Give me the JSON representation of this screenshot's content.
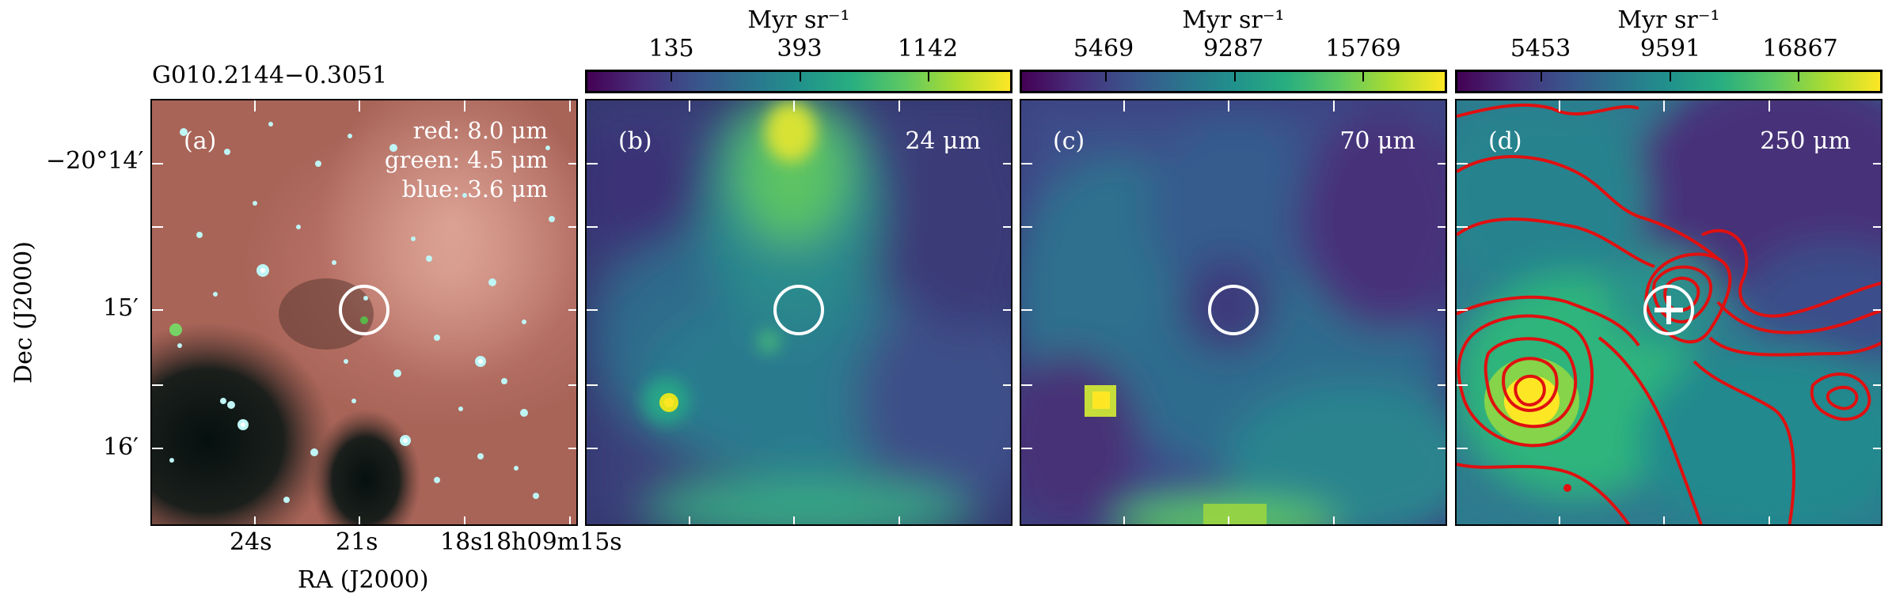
{
  "source_name": "G010.2144−0.3051",
  "axes": {
    "ylabel": "Dec (J2000)",
    "xlabel": "RA (J2000)",
    "yticks": [
      "−20°14′",
      "15′",
      "16′"
    ],
    "xticks": [
      "24s",
      "21s",
      "18s",
      "18h09m15s"
    ]
  },
  "panels": [
    {
      "id": "a",
      "label": "(a)",
      "legend": [
        "red: 8.0 μm",
        "green: 4.5 μm",
        "blue: 3.6 μm"
      ]
    },
    {
      "id": "b",
      "label": "(b)",
      "band": "24 μm",
      "colorbar": {
        "unit": "Myr sr⁻¹",
        "ticks": [
          "135",
          "393",
          "1142"
        ]
      }
    },
    {
      "id": "c",
      "label": "(c)",
      "band": "70 μm",
      "colorbar": {
        "unit": "Myr sr⁻¹",
        "ticks": [
          "5469",
          "9287",
          "15769"
        ]
      }
    },
    {
      "id": "d",
      "label": "(d)",
      "band": "250 μm",
      "colorbar": {
        "unit": "Myr sr⁻¹",
        "ticks": [
          "5453",
          "9591",
          "16867"
        ]
      }
    }
  ],
  "colors": {
    "contour": "#e01010",
    "marker": "#ffffff",
    "colormap": "viridis"
  }
}
